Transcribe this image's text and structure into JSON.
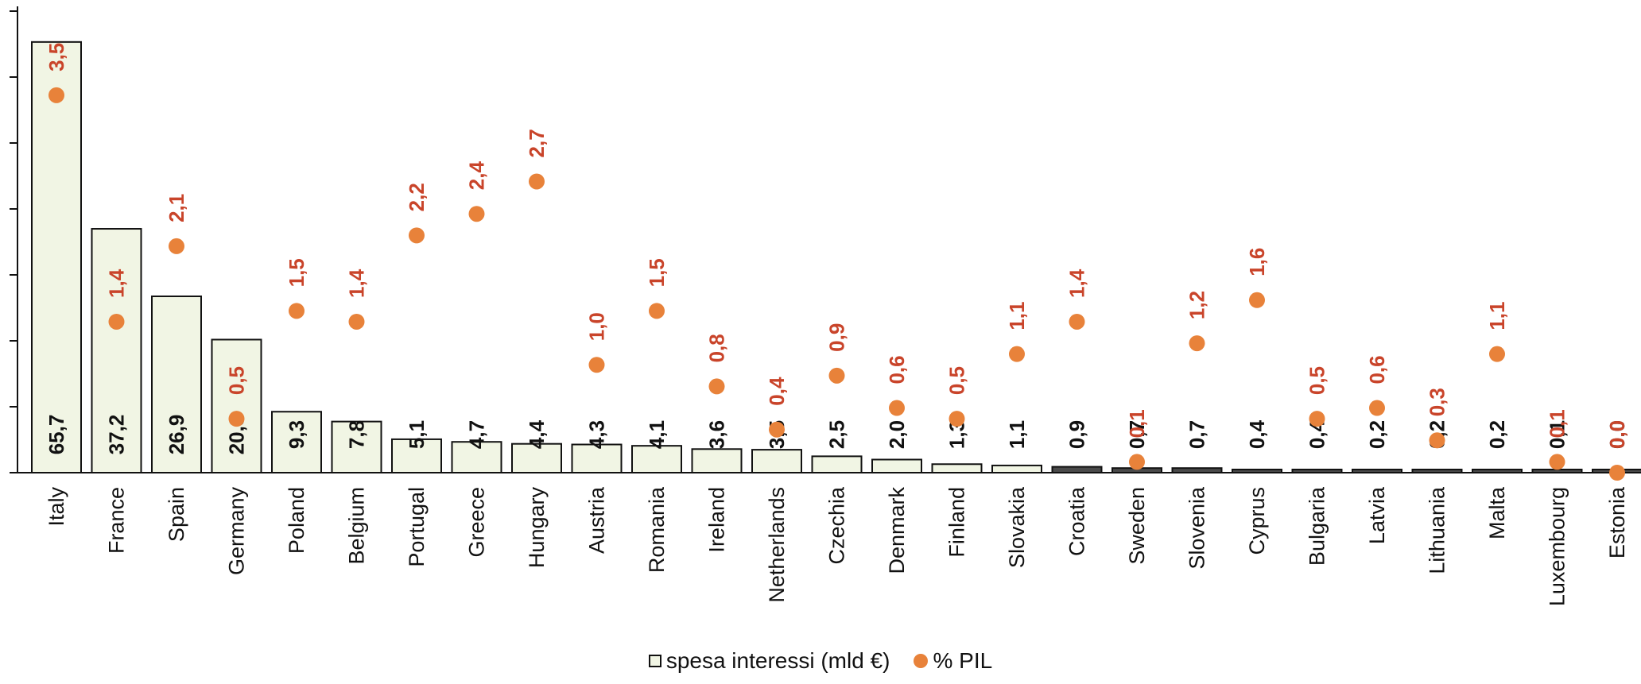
{
  "colors": {
    "bar_fill": "#f1f5e4",
    "bar_stroke": "#111111",
    "small_bar_fill": "#4a4a4a",
    "dot": "#e8823a",
    "dot_label": "#c9442a"
  },
  "chart_data": {
    "type": "bar",
    "categories": [
      "Italy",
      "France",
      "Spain",
      "Germany",
      "Poland",
      "Belgium",
      "Portugal",
      "Greece",
      "Hungary",
      "Austria",
      "Romania",
      "Ireland",
      "Netherlands",
      "Czechia",
      "Denmark",
      "Finland",
      "Slovakia",
      "Croatia",
      "Sweden",
      "Slovenia",
      "Cyprus",
      "Bulgaria",
      "Latvia",
      "Lithuania",
      "Malta",
      "Luxembourg",
      "Estonia"
    ],
    "series": [
      {
        "name": "spesa interessi  (mld €)",
        "type": "bar",
        "values": [
          65.7,
          37.2,
          26.9,
          20.3,
          9.3,
          7.8,
          5.1,
          4.7,
          4.4,
          4.3,
          4.1,
          3.6,
          3.5,
          2.5,
          2.0,
          1.3,
          1.1,
          0.9,
          0.7,
          0.7,
          0.4,
          0.4,
          0.2,
          0.2,
          0.2,
          0.1,
          0.0
        ],
        "labels": [
          "65,7",
          "37,2",
          "26,9",
          "20,3",
          "9,3",
          "7,8",
          "5,1",
          "4,7",
          "4,4",
          "4,3",
          "4,1",
          "3,6",
          "3,5",
          "2,5",
          "2,0",
          "1,3",
          "1,1",
          "0,9",
          "0,7",
          "0,7",
          "0,4",
          "0,4",
          "0,2",
          "0,2",
          "0,2",
          "0,1",
          "0,0"
        ]
      },
      {
        "name": "% PIL",
        "type": "scatter",
        "values": [
          3.5,
          1.4,
          2.1,
          0.5,
          1.5,
          1.4,
          2.2,
          2.4,
          2.7,
          1.0,
          1.5,
          0.8,
          0.4,
          0.9,
          0.6,
          0.5,
          1.1,
          1.4,
          0.1,
          1.2,
          1.6,
          0.5,
          0.6,
          0.3,
          1.1,
          0.1,
          0.0
        ],
        "labels": [
          "3,5",
          "1,4",
          "2,1",
          "0,5",
          "1,5",
          "1,4",
          "2,2",
          "2,4",
          "2,7",
          "1,0",
          "1,5",
          "0,8",
          "0,4",
          "0,9",
          "0,6",
          "0,5",
          "1,1",
          "1,4",
          "0,1",
          "1,2",
          "1,6",
          "0,5",
          "0,6",
          "0,3",
          "1,1",
          "0,1",
          "0,0"
        ]
      }
    ],
    "ylim": [
      0,
      70
    ],
    "y2lim": [
      0,
      4
    ],
    "legend_position": "bottom"
  }
}
